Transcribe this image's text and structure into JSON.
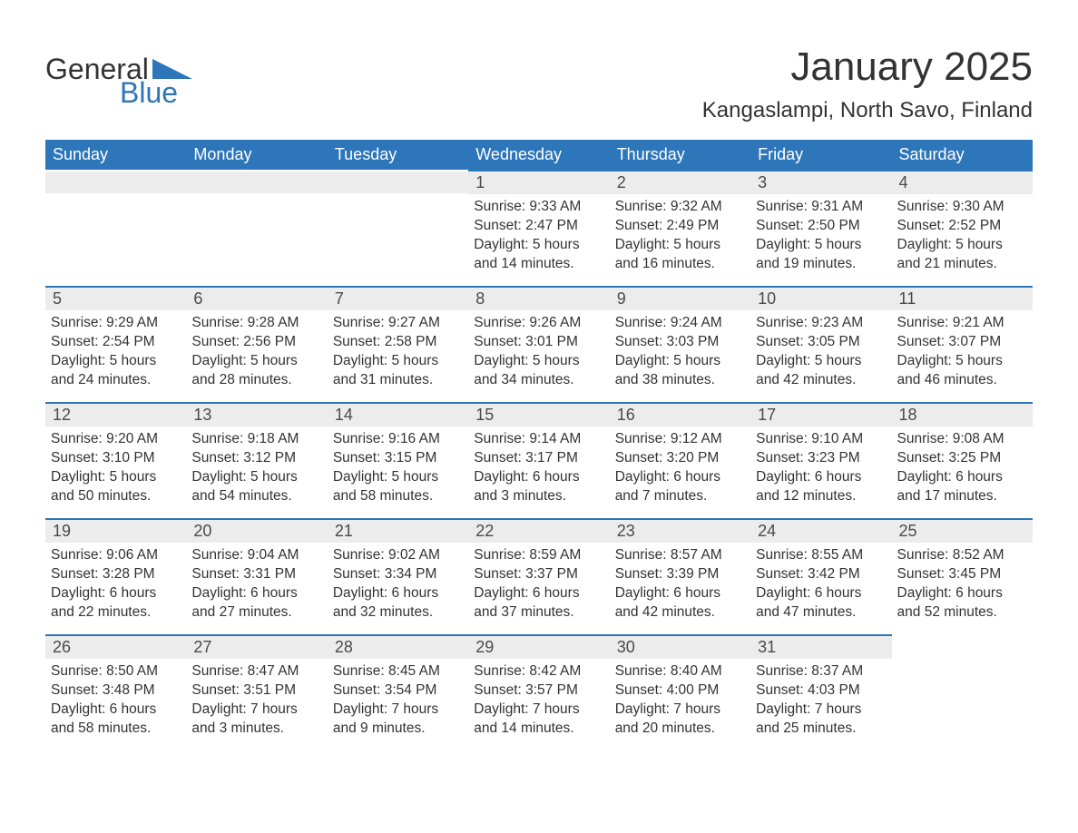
{
  "logo": {
    "word1": "General",
    "word2": "Blue",
    "triangle_color": "#2d76ba"
  },
  "title": "January 2025",
  "location": "Kangaslampi, North Savo, Finland",
  "colors": {
    "header_bg": "#2d76ba",
    "header_text": "#ffffff",
    "daynum_bg": "#ececec",
    "daynum_border": "#2d76ba",
    "body_text": "#333333",
    "page_bg": "#ffffff"
  },
  "fonts": {
    "title_size_pt": 33,
    "location_size_pt": 18,
    "header_size_pt": 14,
    "body_size_pt": 12
  },
  "weekdays": [
    "Sunday",
    "Monday",
    "Tuesday",
    "Wednesday",
    "Thursday",
    "Friday",
    "Saturday"
  ],
  "weeks": [
    [
      null,
      null,
      null,
      {
        "day": "1",
        "sunrise": "Sunrise: 9:33 AM",
        "sunset": "Sunset: 2:47 PM",
        "daylight1": "Daylight: 5 hours",
        "daylight2": "and 14 minutes."
      },
      {
        "day": "2",
        "sunrise": "Sunrise: 9:32 AM",
        "sunset": "Sunset: 2:49 PM",
        "daylight1": "Daylight: 5 hours",
        "daylight2": "and 16 minutes."
      },
      {
        "day": "3",
        "sunrise": "Sunrise: 9:31 AM",
        "sunset": "Sunset: 2:50 PM",
        "daylight1": "Daylight: 5 hours",
        "daylight2": "and 19 minutes."
      },
      {
        "day": "4",
        "sunrise": "Sunrise: 9:30 AM",
        "sunset": "Sunset: 2:52 PM",
        "daylight1": "Daylight: 5 hours",
        "daylight2": "and 21 minutes."
      }
    ],
    [
      {
        "day": "5",
        "sunrise": "Sunrise: 9:29 AM",
        "sunset": "Sunset: 2:54 PM",
        "daylight1": "Daylight: 5 hours",
        "daylight2": "and 24 minutes."
      },
      {
        "day": "6",
        "sunrise": "Sunrise: 9:28 AM",
        "sunset": "Sunset: 2:56 PM",
        "daylight1": "Daylight: 5 hours",
        "daylight2": "and 28 minutes."
      },
      {
        "day": "7",
        "sunrise": "Sunrise: 9:27 AM",
        "sunset": "Sunset: 2:58 PM",
        "daylight1": "Daylight: 5 hours",
        "daylight2": "and 31 minutes."
      },
      {
        "day": "8",
        "sunrise": "Sunrise: 9:26 AM",
        "sunset": "Sunset: 3:01 PM",
        "daylight1": "Daylight: 5 hours",
        "daylight2": "and 34 minutes."
      },
      {
        "day": "9",
        "sunrise": "Sunrise: 9:24 AM",
        "sunset": "Sunset: 3:03 PM",
        "daylight1": "Daylight: 5 hours",
        "daylight2": "and 38 minutes."
      },
      {
        "day": "10",
        "sunrise": "Sunrise: 9:23 AM",
        "sunset": "Sunset: 3:05 PM",
        "daylight1": "Daylight: 5 hours",
        "daylight2": "and 42 minutes."
      },
      {
        "day": "11",
        "sunrise": "Sunrise: 9:21 AM",
        "sunset": "Sunset: 3:07 PM",
        "daylight1": "Daylight: 5 hours",
        "daylight2": "and 46 minutes."
      }
    ],
    [
      {
        "day": "12",
        "sunrise": "Sunrise: 9:20 AM",
        "sunset": "Sunset: 3:10 PM",
        "daylight1": "Daylight: 5 hours",
        "daylight2": "and 50 minutes."
      },
      {
        "day": "13",
        "sunrise": "Sunrise: 9:18 AM",
        "sunset": "Sunset: 3:12 PM",
        "daylight1": "Daylight: 5 hours",
        "daylight2": "and 54 minutes."
      },
      {
        "day": "14",
        "sunrise": "Sunrise: 9:16 AM",
        "sunset": "Sunset: 3:15 PM",
        "daylight1": "Daylight: 5 hours",
        "daylight2": "and 58 minutes."
      },
      {
        "day": "15",
        "sunrise": "Sunrise: 9:14 AM",
        "sunset": "Sunset: 3:17 PM",
        "daylight1": "Daylight: 6 hours",
        "daylight2": "and 3 minutes."
      },
      {
        "day": "16",
        "sunrise": "Sunrise: 9:12 AM",
        "sunset": "Sunset: 3:20 PM",
        "daylight1": "Daylight: 6 hours",
        "daylight2": "and 7 minutes."
      },
      {
        "day": "17",
        "sunrise": "Sunrise: 9:10 AM",
        "sunset": "Sunset: 3:23 PM",
        "daylight1": "Daylight: 6 hours",
        "daylight2": "and 12 minutes."
      },
      {
        "day": "18",
        "sunrise": "Sunrise: 9:08 AM",
        "sunset": "Sunset: 3:25 PM",
        "daylight1": "Daylight: 6 hours",
        "daylight2": "and 17 minutes."
      }
    ],
    [
      {
        "day": "19",
        "sunrise": "Sunrise: 9:06 AM",
        "sunset": "Sunset: 3:28 PM",
        "daylight1": "Daylight: 6 hours",
        "daylight2": "and 22 minutes."
      },
      {
        "day": "20",
        "sunrise": "Sunrise: 9:04 AM",
        "sunset": "Sunset: 3:31 PM",
        "daylight1": "Daylight: 6 hours",
        "daylight2": "and 27 minutes."
      },
      {
        "day": "21",
        "sunrise": "Sunrise: 9:02 AM",
        "sunset": "Sunset: 3:34 PM",
        "daylight1": "Daylight: 6 hours",
        "daylight2": "and 32 minutes."
      },
      {
        "day": "22",
        "sunrise": "Sunrise: 8:59 AM",
        "sunset": "Sunset: 3:37 PM",
        "daylight1": "Daylight: 6 hours",
        "daylight2": "and 37 minutes."
      },
      {
        "day": "23",
        "sunrise": "Sunrise: 8:57 AM",
        "sunset": "Sunset: 3:39 PM",
        "daylight1": "Daylight: 6 hours",
        "daylight2": "and 42 minutes."
      },
      {
        "day": "24",
        "sunrise": "Sunrise: 8:55 AM",
        "sunset": "Sunset: 3:42 PM",
        "daylight1": "Daylight: 6 hours",
        "daylight2": "and 47 minutes."
      },
      {
        "day": "25",
        "sunrise": "Sunrise: 8:52 AM",
        "sunset": "Sunset: 3:45 PM",
        "daylight1": "Daylight: 6 hours",
        "daylight2": "and 52 minutes."
      }
    ],
    [
      {
        "day": "26",
        "sunrise": "Sunrise: 8:50 AM",
        "sunset": "Sunset: 3:48 PM",
        "daylight1": "Daylight: 6 hours",
        "daylight2": "and 58 minutes."
      },
      {
        "day": "27",
        "sunrise": "Sunrise: 8:47 AM",
        "sunset": "Sunset: 3:51 PM",
        "daylight1": "Daylight: 7 hours",
        "daylight2": "and 3 minutes."
      },
      {
        "day": "28",
        "sunrise": "Sunrise: 8:45 AM",
        "sunset": "Sunset: 3:54 PM",
        "daylight1": "Daylight: 7 hours",
        "daylight2": "and 9 minutes."
      },
      {
        "day": "29",
        "sunrise": "Sunrise: 8:42 AM",
        "sunset": "Sunset: 3:57 PM",
        "daylight1": "Daylight: 7 hours",
        "daylight2": "and 14 minutes."
      },
      {
        "day": "30",
        "sunrise": "Sunrise: 8:40 AM",
        "sunset": "Sunset: 4:00 PM",
        "daylight1": "Daylight: 7 hours",
        "daylight2": "and 20 minutes."
      },
      {
        "day": "31",
        "sunrise": "Sunrise: 8:37 AM",
        "sunset": "Sunset: 4:03 PM",
        "daylight1": "Daylight: 7 hours",
        "daylight2": "and 25 minutes."
      },
      null
    ]
  ]
}
